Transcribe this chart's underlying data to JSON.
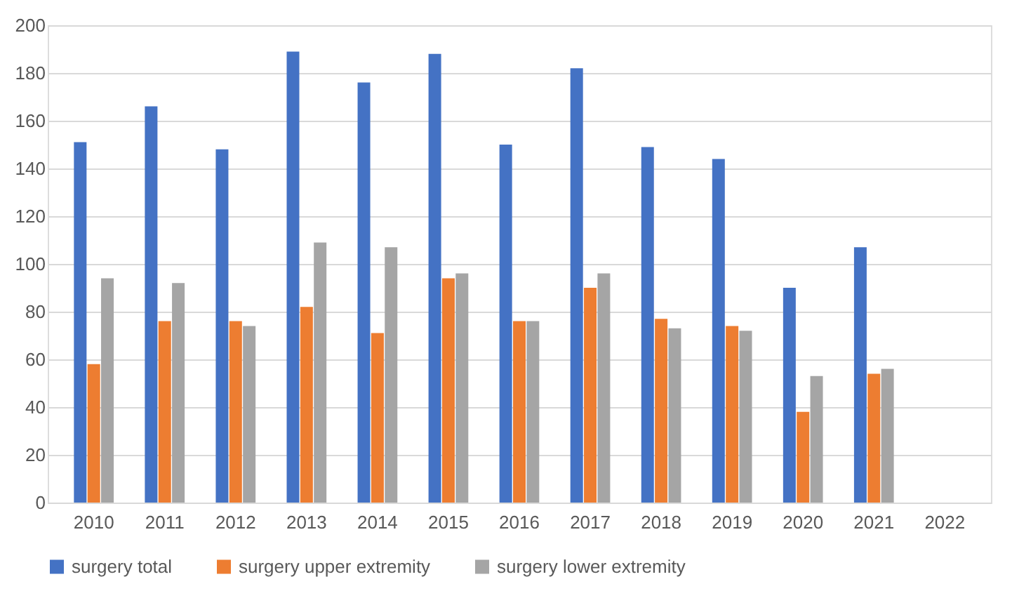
{
  "chart_data": {
    "type": "bar",
    "categories": [
      "2010",
      "2011",
      "2012",
      "2013",
      "2014",
      "2015",
      "2016",
      "2017",
      "2018",
      "2019",
      "2020",
      "2021",
      "2022"
    ],
    "series": [
      {
        "name": "surgery total",
        "color": "#4472c4",
        "values": [
          151,
          166,
          148,
          189,
          176,
          188,
          150,
          182,
          149,
          144,
          90,
          107,
          null
        ]
      },
      {
        "name": "surgery upper extremity",
        "color": "#ed7d31",
        "values": [
          58,
          76,
          76,
          82,
          71,
          94,
          76,
          90,
          77,
          74,
          38,
          54,
          null
        ]
      },
      {
        "name": "surgery lower extremity",
        "color": "#a5a5a5",
        "values": [
          94,
          92,
          74,
          109,
          107,
          96,
          76,
          96,
          73,
          72,
          53,
          56,
          null
        ]
      }
    ],
    "ylim": [
      0,
      200
    ],
    "yticks": [
      0,
      20,
      40,
      60,
      80,
      100,
      120,
      140,
      160,
      180,
      200
    ],
    "grid": "y",
    "legend": "bottom"
  }
}
